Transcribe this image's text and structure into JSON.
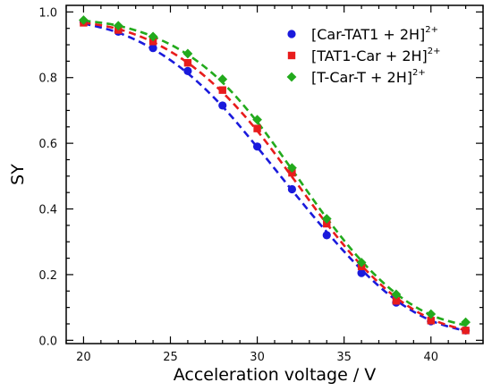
{
  "chart_data": {
    "type": "scatter",
    "xlabel": "Acceleration voltage / V",
    "ylabel": "SY",
    "xlim": [
      19,
      43
    ],
    "ylim": [
      -0.01,
      1.02
    ],
    "xticks": [
      20,
      25,
      30,
      35,
      40
    ],
    "yticks": [
      0.0,
      0.2,
      0.4,
      0.6,
      0.8,
      1.0
    ],
    "ytick_labels": [
      "0.0",
      "0.2",
      "0.4",
      "0.6",
      "0.8",
      "1.0"
    ],
    "minor_xtick_step": 1,
    "minor_ytick_step": 0.05,
    "grid": false,
    "legend_position": "top-right",
    "series": [
      {
        "name": "[Car-TAT1 + 2H]",
        "name_superscript": "2+",
        "marker": "circle",
        "color": "#1a1adc",
        "line_style": "dashed",
        "x": [
          20,
          22,
          24,
          26,
          28,
          30,
          32,
          34,
          36,
          38,
          40,
          42
        ],
        "y": [
          0.97,
          0.94,
          0.89,
          0.82,
          0.715,
          0.59,
          0.46,
          0.32,
          0.205,
          0.115,
          0.058,
          0.03
        ],
        "fit": [
          0.965,
          0.937,
          0.887,
          0.813,
          0.712,
          0.588,
          0.457,
          0.33,
          0.215,
          0.122,
          0.06,
          0.028
        ]
      },
      {
        "name": "[TAT1-Car + 2H]",
        "name_superscript": "2+",
        "marker": "square",
        "color": "#e81c1c",
        "line_style": "dashed",
        "x": [
          20,
          22,
          24,
          26,
          28,
          30,
          32,
          34,
          36,
          38,
          40,
          42
        ],
        "y": [
          0.967,
          0.945,
          0.91,
          0.845,
          0.762,
          0.645,
          0.51,
          0.355,
          0.225,
          0.12,
          0.06,
          0.03
        ],
        "fit": [
          0.968,
          0.948,
          0.908,
          0.845,
          0.755,
          0.638,
          0.498,
          0.355,
          0.228,
          0.13,
          0.065,
          0.03
        ]
      },
      {
        "name": "[T-Car-T + 2H]",
        "name_superscript": "2+",
        "marker": "diamond",
        "color": "#22aa1c",
        "line_style": "dashed",
        "x": [
          20,
          22,
          24,
          26,
          28,
          30,
          32,
          34,
          36,
          38,
          40,
          42
        ],
        "y": [
          0.975,
          0.958,
          0.925,
          0.873,
          0.795,
          0.672,
          0.525,
          0.37,
          0.237,
          0.14,
          0.08,
          0.055
        ],
        "fit": [
          0.974,
          0.958,
          0.925,
          0.87,
          0.785,
          0.665,
          0.52,
          0.372,
          0.242,
          0.142,
          0.077,
          0.045
        ]
      }
    ]
  }
}
